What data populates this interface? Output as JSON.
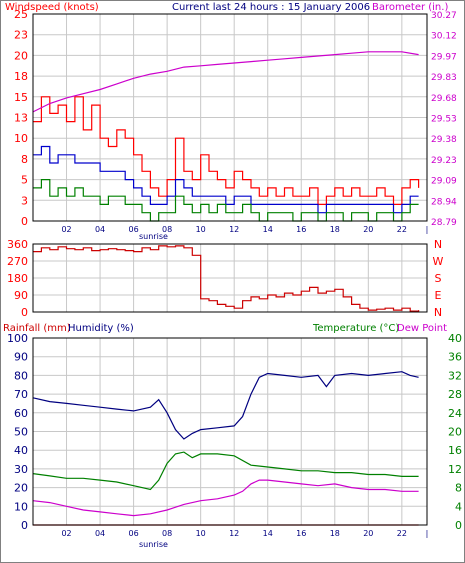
{
  "header": {
    "windspeed_label": "Windspeed (knots)",
    "title": "Current last 24 hours : 15 January 2006",
    "barometer_label": "Barometer (in.)"
  },
  "labels": {
    "sunrise": "sunrise",
    "rainfall": "Rainfall (mm)",
    "humidity": "Humidity (%)",
    "temperature": "Temperature (°C)",
    "dewpoint": "Dew Point"
  },
  "colors": {
    "red": "#ff0000",
    "blue": "#0000cc",
    "green": "#008000",
    "magenta": "#cc00cc",
    "navy": "#000080",
    "grid": "#c8c8c8",
    "frame": "#000000"
  },
  "chart_data": [
    {
      "type": "line",
      "title": "Current last 24 hours : 15 January 2006",
      "xlabel": "",
      "x_ticks": [
        "02",
        "04",
        "06",
        "08",
        "10",
        "12",
        "14",
        "16",
        "18",
        "20",
        "22",
        "|"
      ],
      "annotation": "sunrise",
      "y_left": {
        "label": "Windspeed (knots)",
        "ticks": [
          0,
          3,
          5,
          8,
          10,
          13,
          15,
          18,
          20,
          23,
          25
        ],
        "range": [
          0,
          25
        ]
      },
      "y_right": {
        "label": "Barometer (in.)",
        "ticks": [
          "28.79",
          "28.94",
          "29.09",
          "29.23",
          "29.38",
          "29.53",
          "29.68",
          "29.83",
          "29.97",
          "30.12",
          "30.27"
        ],
        "range": [
          28.79,
          30.27
        ]
      },
      "series": [
        {
          "name": "Windspeed (knots)",
          "axis": "left",
          "color": "#ff0000",
          "x": [
            0,
            0.5,
            1,
            1.5,
            2,
            2.5,
            3,
            3.5,
            4,
            4.5,
            5,
            5.5,
            6,
            6.5,
            7,
            7.5,
            8,
            8.5,
            9,
            9.5,
            10,
            10.5,
            11,
            11.5,
            12,
            12.5,
            13,
            13.5,
            14,
            14.5,
            15,
            15.5,
            16,
            16.5,
            17,
            17.5,
            18,
            18.5,
            19,
            19.5,
            20,
            20.5,
            21,
            21.5,
            22,
            22.5,
            23
          ],
          "values": [
            12,
            15,
            13,
            14,
            12,
            15,
            11,
            14,
            10,
            9,
            11,
            10,
            8,
            6,
            4,
            3,
            5,
            10,
            6,
            5,
            8,
            6,
            5,
            4,
            6,
            5,
            4,
            3,
            4,
            3,
            4,
            3,
            3,
            4,
            2,
            3,
            4,
            3,
            4,
            3,
            3,
            4,
            3,
            2,
            4,
            5,
            4
          ]
        },
        {
          "name": "",
          "axis": "left",
          "color": "#0000cc",
          "x": [
            0,
            0.5,
            1,
            1.5,
            2,
            2.5,
            3,
            3.5,
            4,
            4.5,
            5,
            5.5,
            6,
            6.5,
            7,
            7.5,
            8,
            8.5,
            9,
            9.5,
            10,
            10.5,
            11,
            11.5,
            12,
            12.5,
            13,
            13.5,
            14,
            14.5,
            15,
            15.5,
            16,
            16.5,
            17,
            17.5,
            18,
            18.5,
            19,
            19.5,
            20,
            20.5,
            21,
            21.5,
            22,
            22.5,
            23
          ],
          "values": [
            8,
            9,
            7,
            8,
            8,
            7,
            7,
            7,
            6,
            6,
            6,
            5,
            4,
            3,
            2,
            2,
            3,
            5,
            4,
            3,
            3,
            3,
            3,
            2,
            3,
            3,
            2,
            2,
            2,
            2,
            2,
            2,
            2,
            2,
            1,
            2,
            2,
            2,
            2,
            2,
            2,
            2,
            2,
            1,
            2,
            3,
            3
          ]
        },
        {
          "name": "",
          "axis": "left",
          "color": "#008000",
          "x": [
            0,
            0.5,
            1,
            1.5,
            2,
            2.5,
            3,
            3.5,
            4,
            4.5,
            5,
            5.5,
            6,
            6.5,
            7,
            7.5,
            8,
            8.5,
            9,
            9.5,
            10,
            10.5,
            11,
            11.5,
            12,
            12.5,
            13,
            13.5,
            14,
            14.5,
            15,
            15.5,
            16,
            16.5,
            17,
            17.5,
            18,
            18.5,
            19,
            19.5,
            20,
            20.5,
            21,
            21.5,
            22,
            22.5,
            23
          ],
          "values": [
            4,
            5,
            3,
            4,
            3,
            4,
            3,
            3,
            2,
            3,
            3,
            2,
            2,
            1,
            0,
            1,
            1,
            3,
            2,
            1,
            2,
            1,
            2,
            1,
            1,
            2,
            1,
            0,
            1,
            1,
            1,
            0,
            1,
            1,
            0,
            1,
            1,
            0,
            1,
            1,
            0,
            1,
            1,
            0,
            1,
            2,
            2
          ]
        },
        {
          "name": "Barometer (in.)",
          "axis": "right",
          "color": "#cc00cc",
          "x": [
            0,
            1,
            2,
            3,
            4,
            5,
            6,
            7,
            8,
            9,
            10,
            11,
            12,
            13,
            14,
            15,
            16,
            17,
            18,
            19,
            20,
            21,
            22,
            23
          ],
          "values": [
            29.57,
            29.63,
            29.67,
            29.7,
            29.73,
            29.77,
            29.81,
            29.84,
            29.86,
            29.89,
            29.9,
            29.91,
            29.92,
            29.93,
            29.94,
            29.95,
            29.96,
            29.97,
            29.98,
            29.99,
            30.0,
            30.0,
            30.0,
            29.98
          ]
        }
      ]
    },
    {
      "type": "line",
      "title": "",
      "xlabel": "",
      "y_left": {
        "label": "",
        "ticks": [
          0,
          90,
          180,
          270,
          360
        ],
        "range": [
          0,
          360
        ]
      },
      "y_right": {
        "label": "",
        "ticks": [
          "N",
          "W",
          "S",
          "E",
          "N"
        ]
      },
      "series": [
        {
          "name": "",
          "axis": "left",
          "color": "#cc0000",
          "x": [
            0,
            0.5,
            1,
            1.5,
            2,
            2.5,
            3,
            3.5,
            4,
            4.5,
            5,
            5.5,
            6,
            6.5,
            7,
            7.5,
            8,
            8.5,
            9,
            9.5,
            10,
            10.5,
            11,
            11.5,
            12,
            12.5,
            13,
            13.5,
            14,
            14.5,
            15,
            15.5,
            16,
            16.5,
            17,
            17.5,
            18,
            18.5,
            19,
            19.5,
            20,
            20.5,
            21,
            21.5,
            22,
            22.5,
            23
          ],
          "values": [
            320,
            340,
            330,
            345,
            335,
            330,
            340,
            325,
            330,
            335,
            330,
            325,
            320,
            340,
            330,
            350,
            345,
            350,
            340,
            300,
            70,
            60,
            40,
            30,
            20,
            60,
            80,
            70,
            90,
            80,
            100,
            90,
            110,
            130,
            100,
            110,
            120,
            80,
            40,
            20,
            10,
            15,
            20,
            10,
            20,
            5,
            10
          ]
        }
      ]
    },
    {
      "type": "line",
      "title": "",
      "xlabel": "",
      "x_ticks": [
        "02",
        "04",
        "06",
        "08",
        "10",
        "12",
        "14",
        "16",
        "18",
        "20",
        "22",
        "|"
      ],
      "annotation": "sunrise",
      "y_left": {
        "label": "Rainfall (mm)",
        "ticks": [
          0,
          10,
          20,
          30,
          40,
          50,
          60,
          70,
          80,
          90,
          100
        ],
        "range": [
          0,
          100
        ]
      },
      "y_right": {
        "label": "Temperature (°C)",
        "ticks": [
          0,
          4,
          8,
          12,
          16,
          20,
          24,
          28,
          32,
          36,
          40
        ],
        "range": [
          0,
          40
        ]
      },
      "series": [
        {
          "name": "Humidity (%)",
          "axis": "left",
          "color": "#000080",
          "x": [
            0,
            1,
            2,
            3,
            4,
            5,
            6,
            7,
            7.5,
            8,
            8.5,
            9,
            9.5,
            10,
            11,
            12,
            12.5,
            13,
            13.5,
            14,
            15,
            16,
            17,
            17.5,
            18,
            19,
            20,
            21,
            22,
            22.5,
            23
          ],
          "values": [
            68,
            66,
            65,
            64,
            63,
            62,
            61,
            63,
            67,
            60,
            51,
            46,
            49,
            51,
            52,
            53,
            58,
            70,
            79,
            81,
            80,
            79,
            80,
            74,
            80,
            81,
            80,
            81,
            82,
            80,
            79
          ]
        },
        {
          "name": "Temperature (°C)",
          "axis": "right",
          "color": "#008000",
          "x": [
            0,
            1,
            2,
            3,
            4,
            5,
            6,
            7,
            7.5,
            8,
            8.5,
            9,
            9.5,
            10,
            11,
            12,
            13,
            14,
            15,
            16,
            17,
            18,
            19,
            20,
            21,
            22,
            23
          ],
          "values": [
            11,
            10.5,
            10,
            10,
            9.6,
            9.2,
            8.4,
            7.6,
            9.6,
            13.2,
            15.2,
            15.6,
            14.4,
            15.2,
            15.2,
            14.8,
            12.8,
            12.4,
            12.0,
            11.6,
            11.6,
            11.2,
            11.2,
            10.8,
            10.8,
            10.4,
            10.4
          ]
        },
        {
          "name": "Dew Point",
          "axis": "right",
          "color": "#cc00cc",
          "x": [
            0,
            1,
            2,
            3,
            4,
            5,
            6,
            7,
            8,
            9,
            10,
            11,
            12,
            12.5,
            13,
            13.5,
            14,
            15,
            16,
            17,
            18,
            19,
            20,
            21,
            22,
            23
          ],
          "values": [
            5.2,
            4.8,
            4.0,
            3.2,
            2.8,
            2.4,
            2.0,
            2.4,
            3.2,
            4.4,
            5.2,
            5.6,
            6.4,
            7.2,
            8.8,
            9.6,
            9.6,
            9.2,
            8.8,
            8.4,
            8.8,
            8.0,
            7.6,
            7.6,
            7.2,
            7.2
          ]
        },
        {
          "name": "Rainfall (mm)",
          "axis": "left",
          "color": "#cc0000",
          "x": [
            0,
            23
          ],
          "values": [
            0,
            0
          ]
        }
      ]
    }
  ]
}
